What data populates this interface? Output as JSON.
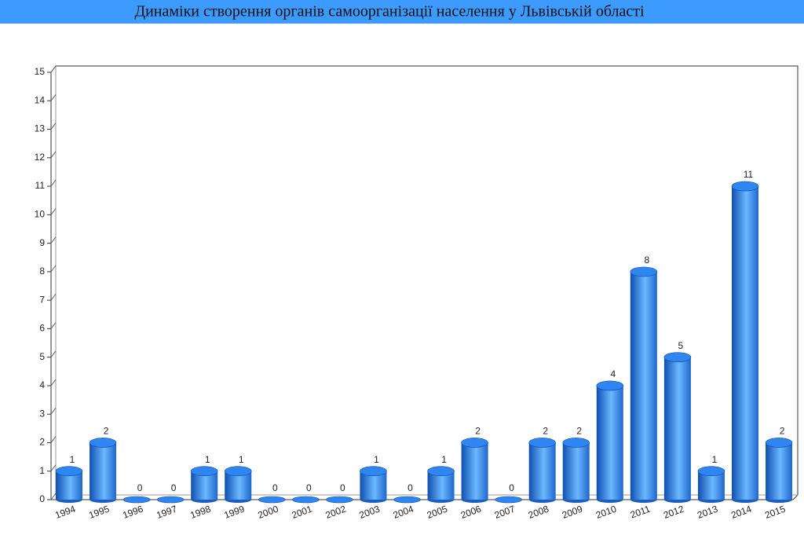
{
  "chart_data": {
    "type": "bar",
    "title": "Динаміки створення органів самоорганізації населення у Львівській області",
    "categories": [
      "1994",
      "1995",
      "1996",
      "1997",
      "1998",
      "1999",
      "2000",
      "2001",
      "2002",
      "2003",
      "2004",
      "2005",
      "2006",
      "2007",
      "2008",
      "2009",
      "2010",
      "2011",
      "2012",
      "2013",
      "2014",
      "2015"
    ],
    "values": [
      1,
      2,
      0,
      0,
      1,
      1,
      0,
      0,
      0,
      1,
      0,
      1,
      2,
      0,
      2,
      2,
      4,
      8,
      5,
      1,
      11,
      2
    ],
    "color": "#2f86f0",
    "ylim": [
      0,
      15
    ],
    "yticks": [
      0,
      1,
      2,
      3,
      4,
      5,
      6,
      7,
      8,
      9,
      10,
      11,
      12,
      13,
      14,
      15
    ]
  }
}
